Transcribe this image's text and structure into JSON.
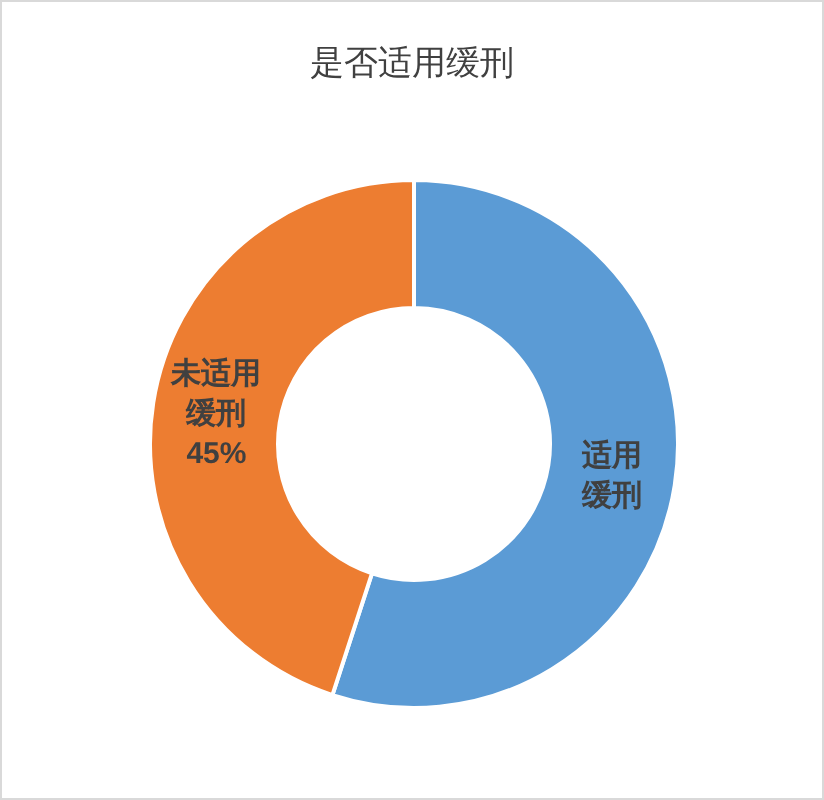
{
  "chart_data": {
    "type": "donut",
    "title": "是否适用缓刑",
    "categories": [
      "适用缓刑",
      "未适用缓刑"
    ],
    "values": [
      55,
      45
    ],
    "colors": [
      "#5b9bd5",
      "#ed7d31"
    ],
    "value_labels": [
      null,
      "45%"
    ]
  }
}
